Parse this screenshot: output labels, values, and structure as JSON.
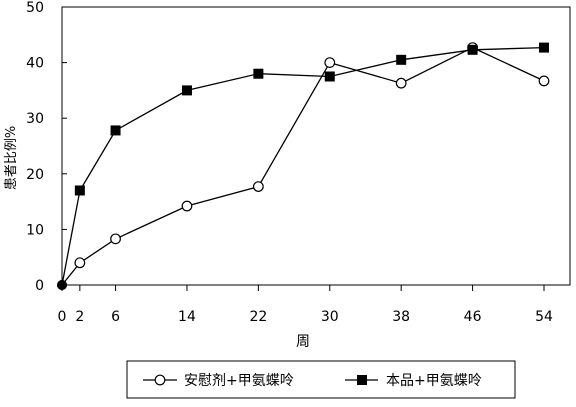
{
  "chart_data": {
    "type": "line",
    "title": "",
    "xlabel": "周",
    "ylabel": "患者比例%",
    "x_ticks": [
      0,
      2,
      6,
      14,
      22,
      30,
      38,
      46,
      54
    ],
    "y_ticks": [
      0,
      10,
      20,
      30,
      40,
      50
    ],
    "xlim": [
      0,
      56
    ],
    "ylim": [
      0,
      50
    ],
    "grid": false,
    "legend_position": "bottom",
    "series": [
      {
        "name": "安慰剂+甲氨蝶呤",
        "marker": "open-circle",
        "color": "#000000",
        "x": [
          0,
          2,
          6,
          14,
          22,
          30,
          38,
          46,
          54
        ],
        "y": [
          0,
          4,
          8.3,
          14.2,
          17.7,
          40,
          36.3,
          42.7,
          36.7
        ]
      },
      {
        "name": "本品+甲氨蝶呤",
        "marker": "filled-square",
        "color": "#000000",
        "x": [
          0,
          2,
          6,
          14,
          22,
          30,
          38,
          46,
          54
        ],
        "y": [
          0,
          17,
          27.8,
          35,
          38,
          37.5,
          40.5,
          42.3,
          42.7
        ]
      }
    ]
  }
}
